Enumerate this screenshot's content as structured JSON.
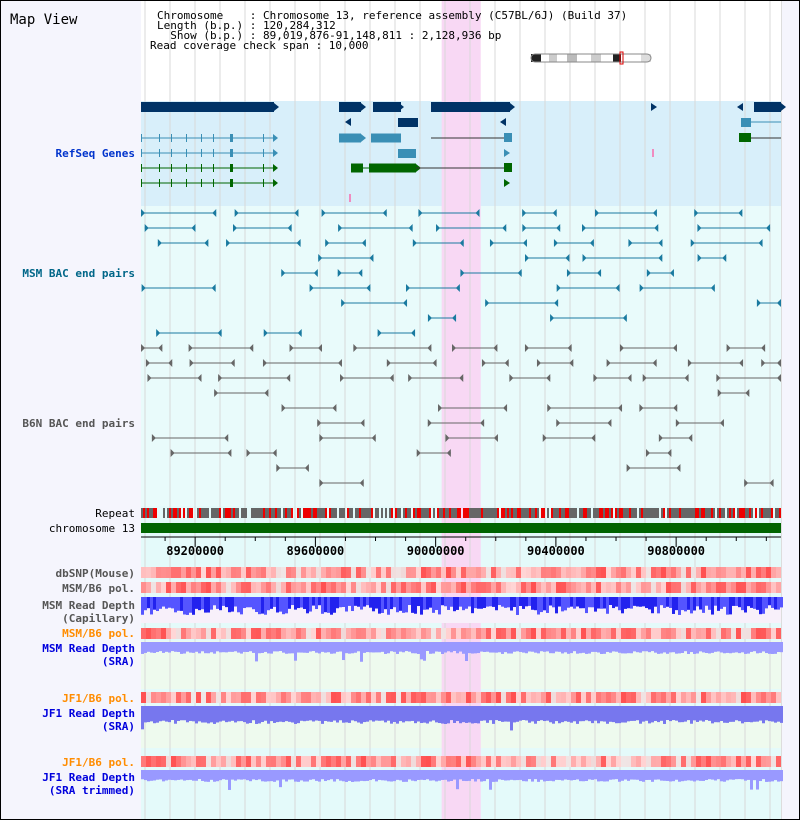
{
  "title": "Map View",
  "header": {
    "chromosome_line": "Chromosome    : Chromosome 13, reference assembly (C57BL/6J) (Build 37)",
    "length_line": "Length (b.p.) : 120,284,312",
    "show_line": "  Show (b.p.) : 89,019,876-91,148,811 : 2,128,936 bp",
    "span_line": "Read coverage check span : 10,000"
  },
  "tracks": {
    "refseq": "RefSeq Genes",
    "msm_bac": "MSM BAC end pairs",
    "b6n_bac": "B6N BAC end pairs",
    "repeat": "Repeat",
    "chromosome": "chromosome 13",
    "dbsnp": "dbSNP(Mouse)",
    "msm_pol1": "MSM/B6 pol.",
    "msm_depth_cap": "MSM Read Depth\n(Capillary)",
    "msm_pol2": "MSM/B6 pol.",
    "msm_depth_sra": "MSM Read Depth\n(SRA)",
    "jf1_pol1": "JF1/B6 pol.",
    "jf1_depth_sra": "JF1 Read Depth\n(SRA)",
    "jf1_pol2": "JF1/B6 pol.",
    "jf1_depth_trim": "JF1 Read Depth\n(SRA trimmed)"
  },
  "axis": {
    "ticks": [
      "89200000",
      "89600000",
      "90000000",
      "90400000",
      "90800000"
    ],
    "tick_values": [
      89200000,
      89600000,
      90000000,
      90400000,
      90800000
    ],
    "start": 89019876,
    "end": 91148811
  },
  "highlight": {
    "start": 90020000,
    "end": 90150000,
    "color": "#f8d8f4"
  },
  "colors": {
    "refseq_label": "#0033cc",
    "msm_label": "#006688",
    "gray_label": "#555555",
    "orange_label": "#ff8c00",
    "blue_label": "#0000dd",
    "chrom": "#006400"
  }
}
